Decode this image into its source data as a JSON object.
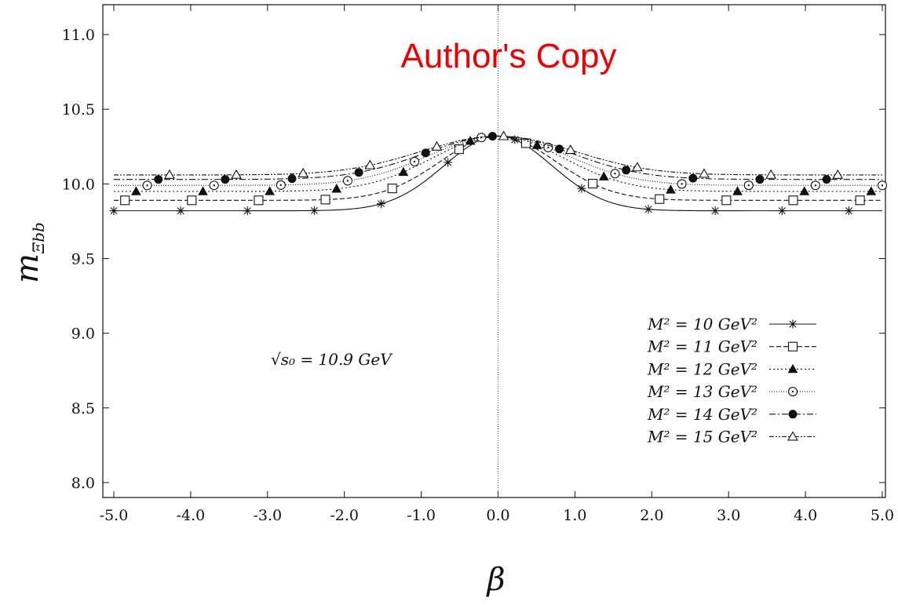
{
  "chart_data": {
    "type": "line",
    "watermark": "Author's Copy",
    "xlabel": "β",
    "ylabel_main": "m",
    "ylabel_sub": "Ξbb",
    "annotation": "√s₀ = 10.9 GeV",
    "xlim": [
      -5.0,
      5.0
    ],
    "ylim": [
      7.9,
      11.2
    ],
    "x_ticks": [
      -5.0,
      -4.0,
      -3.0,
      -2.0,
      -1.0,
      0.0,
      1.0,
      2.0,
      3.0,
      4.0,
      5.0
    ],
    "x_tick_labels": [
      "-5.0",
      "-4.0",
      "-3.0",
      "-2.0",
      "-1.0",
      "0.0",
      "1.0",
      "2.0",
      "3.0",
      "4.0",
      "5.0"
    ],
    "y_ticks": [
      8.0,
      8.5,
      9.0,
      9.5,
      10.0,
      10.5,
      11.0
    ],
    "y_tick_labels": [
      "8.0",
      "8.5",
      "9.0",
      "9.5",
      "10.0",
      "10.5",
      "11.0"
    ],
    "vertical_line_x": 0.0,
    "legend_position": "right",
    "series": [
      {
        "name": "M² = 10 GeV²",
        "marker": "star",
        "dash": "",
        "sig": 0.7,
        "min_val": 9.82,
        "peak": 10.32
      },
      {
        "name": "M² = 11 GeV²",
        "marker": "square",
        "dash": "6,3",
        "sig": 0.75,
        "min_val": 9.89,
        "peak": 10.32
      },
      {
        "name": "M² = 12 GeV²",
        "marker": "triangle-filled",
        "dash": "2,3",
        "sig": 0.85,
        "min_val": 9.95,
        "peak": 10.32
      },
      {
        "name": "M² = 13 GeV²",
        "marker": "circle-dot",
        "dash": "1,2",
        "sig": 0.9,
        "min_val": 9.99,
        "peak": 10.32
      },
      {
        "name": "M² = 14 GeV²",
        "marker": "circle-filled",
        "dash": "8,3,2,3",
        "sig": 0.95,
        "min_val": 10.03,
        "peak": 10.32
      },
      {
        "name": "M² = 15 GeV²",
        "marker": "triangle-open",
        "dash": "6,2,2,2,2,2",
        "sig": 1.0,
        "min_val": 10.06,
        "peak": 10.32
      }
    ]
  }
}
